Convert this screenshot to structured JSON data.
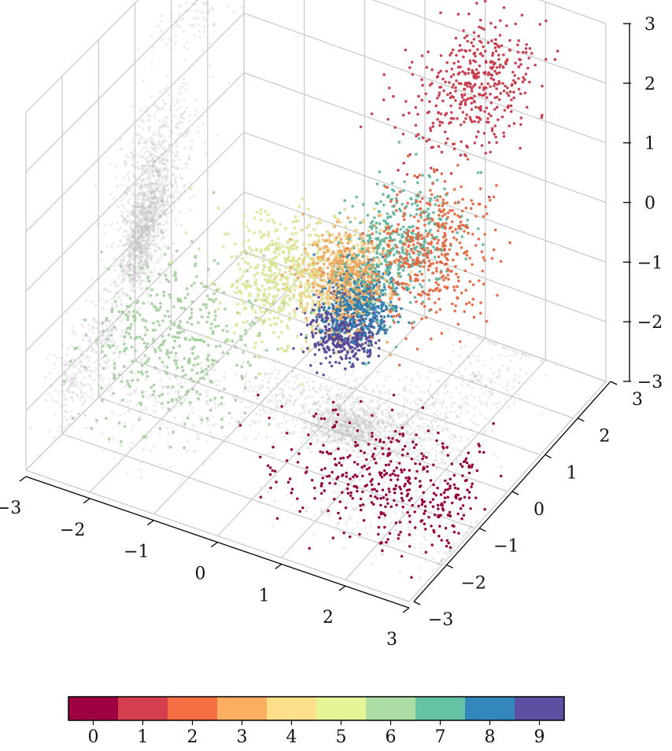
{
  "chart_data": {
    "type": "scatter",
    "projection": "3d",
    "title": "",
    "xlabel": "",
    "ylabel": "",
    "zlabel": "",
    "xlim": [
      -3,
      3
    ],
    "ylim": [
      -3,
      3
    ],
    "zlim": [
      -3,
      3
    ],
    "x_ticks": [
      "−3",
      "−2",
      "−1",
      "0",
      "1",
      "2",
      "3"
    ],
    "y_ticks": [
      "−3",
      "−2",
      "−1",
      "0",
      "1",
      "2",
      "3"
    ],
    "z_ticks": [
      "−3",
      "−2",
      "−1",
      "0",
      "1",
      "2",
      "3"
    ],
    "grid": true,
    "shadow_projections": true,
    "clusters": [
      {
        "label": 0,
        "color": "#9e0142",
        "center": [
          2.0,
          -1.5,
          -2.3
        ],
        "spread": [
          0.9,
          0.5,
          0.35
        ]
      },
      {
        "label": 1,
        "color": "#d53e4f",
        "center": [
          1.4,
          2.0,
          2.0
        ],
        "spread": [
          0.4,
          0.8,
          0.35
        ]
      },
      {
        "label": 2,
        "color": "#f46d43",
        "center": [
          1.5,
          0.5,
          0.2
        ],
        "spread": [
          0.4,
          0.5,
          0.5
        ]
      },
      {
        "label": 3,
        "color": "#fdae61",
        "center": [
          0.3,
          0.3,
          -0.6
        ],
        "spread": [
          0.3,
          0.3,
          0.3
        ]
      },
      {
        "label": 4,
        "color": "#fee08b",
        "center": [
          0.0,
          0.5,
          -0.8
        ],
        "spread": [
          0.3,
          0.4,
          0.35
        ]
      },
      {
        "label": 5,
        "color": "#e6f598",
        "center": [
          -0.8,
          0.3,
          -1.0
        ],
        "spread": [
          0.4,
          0.4,
          0.4
        ]
      },
      {
        "label": 6,
        "color": "#abdda4",
        "center": [
          -2.0,
          -0.6,
          -1.9
        ],
        "spread": [
          0.6,
          0.7,
          0.5
        ]
      },
      {
        "label": 7,
        "color": "#66c2a5",
        "center": [
          0.9,
          0.6,
          0.0
        ],
        "spread": [
          0.3,
          0.6,
          0.45
        ]
      },
      {
        "label": 8,
        "color": "#3288bd",
        "center": [
          0.5,
          0.2,
          -0.9
        ],
        "spread": [
          0.25,
          0.25,
          0.25
        ]
      },
      {
        "label": 9,
        "color": "#5e4fa2",
        "center": [
          0.3,
          0.1,
          -1.4
        ],
        "spread": [
          0.25,
          0.25,
          0.2
        ]
      }
    ],
    "colorbar": {
      "labels": [
        "0",
        "1",
        "2",
        "3",
        "4",
        "5",
        "6",
        "7",
        "8",
        "9"
      ],
      "colors": [
        "#9e0142",
        "#d53e4f",
        "#f46d43",
        "#fdae61",
        "#fee08b",
        "#e6f598",
        "#abdda4",
        "#66c2a5",
        "#3288bd",
        "#5e4fa2"
      ],
      "orientation": "horizontal",
      "placement": "bottom"
    }
  }
}
